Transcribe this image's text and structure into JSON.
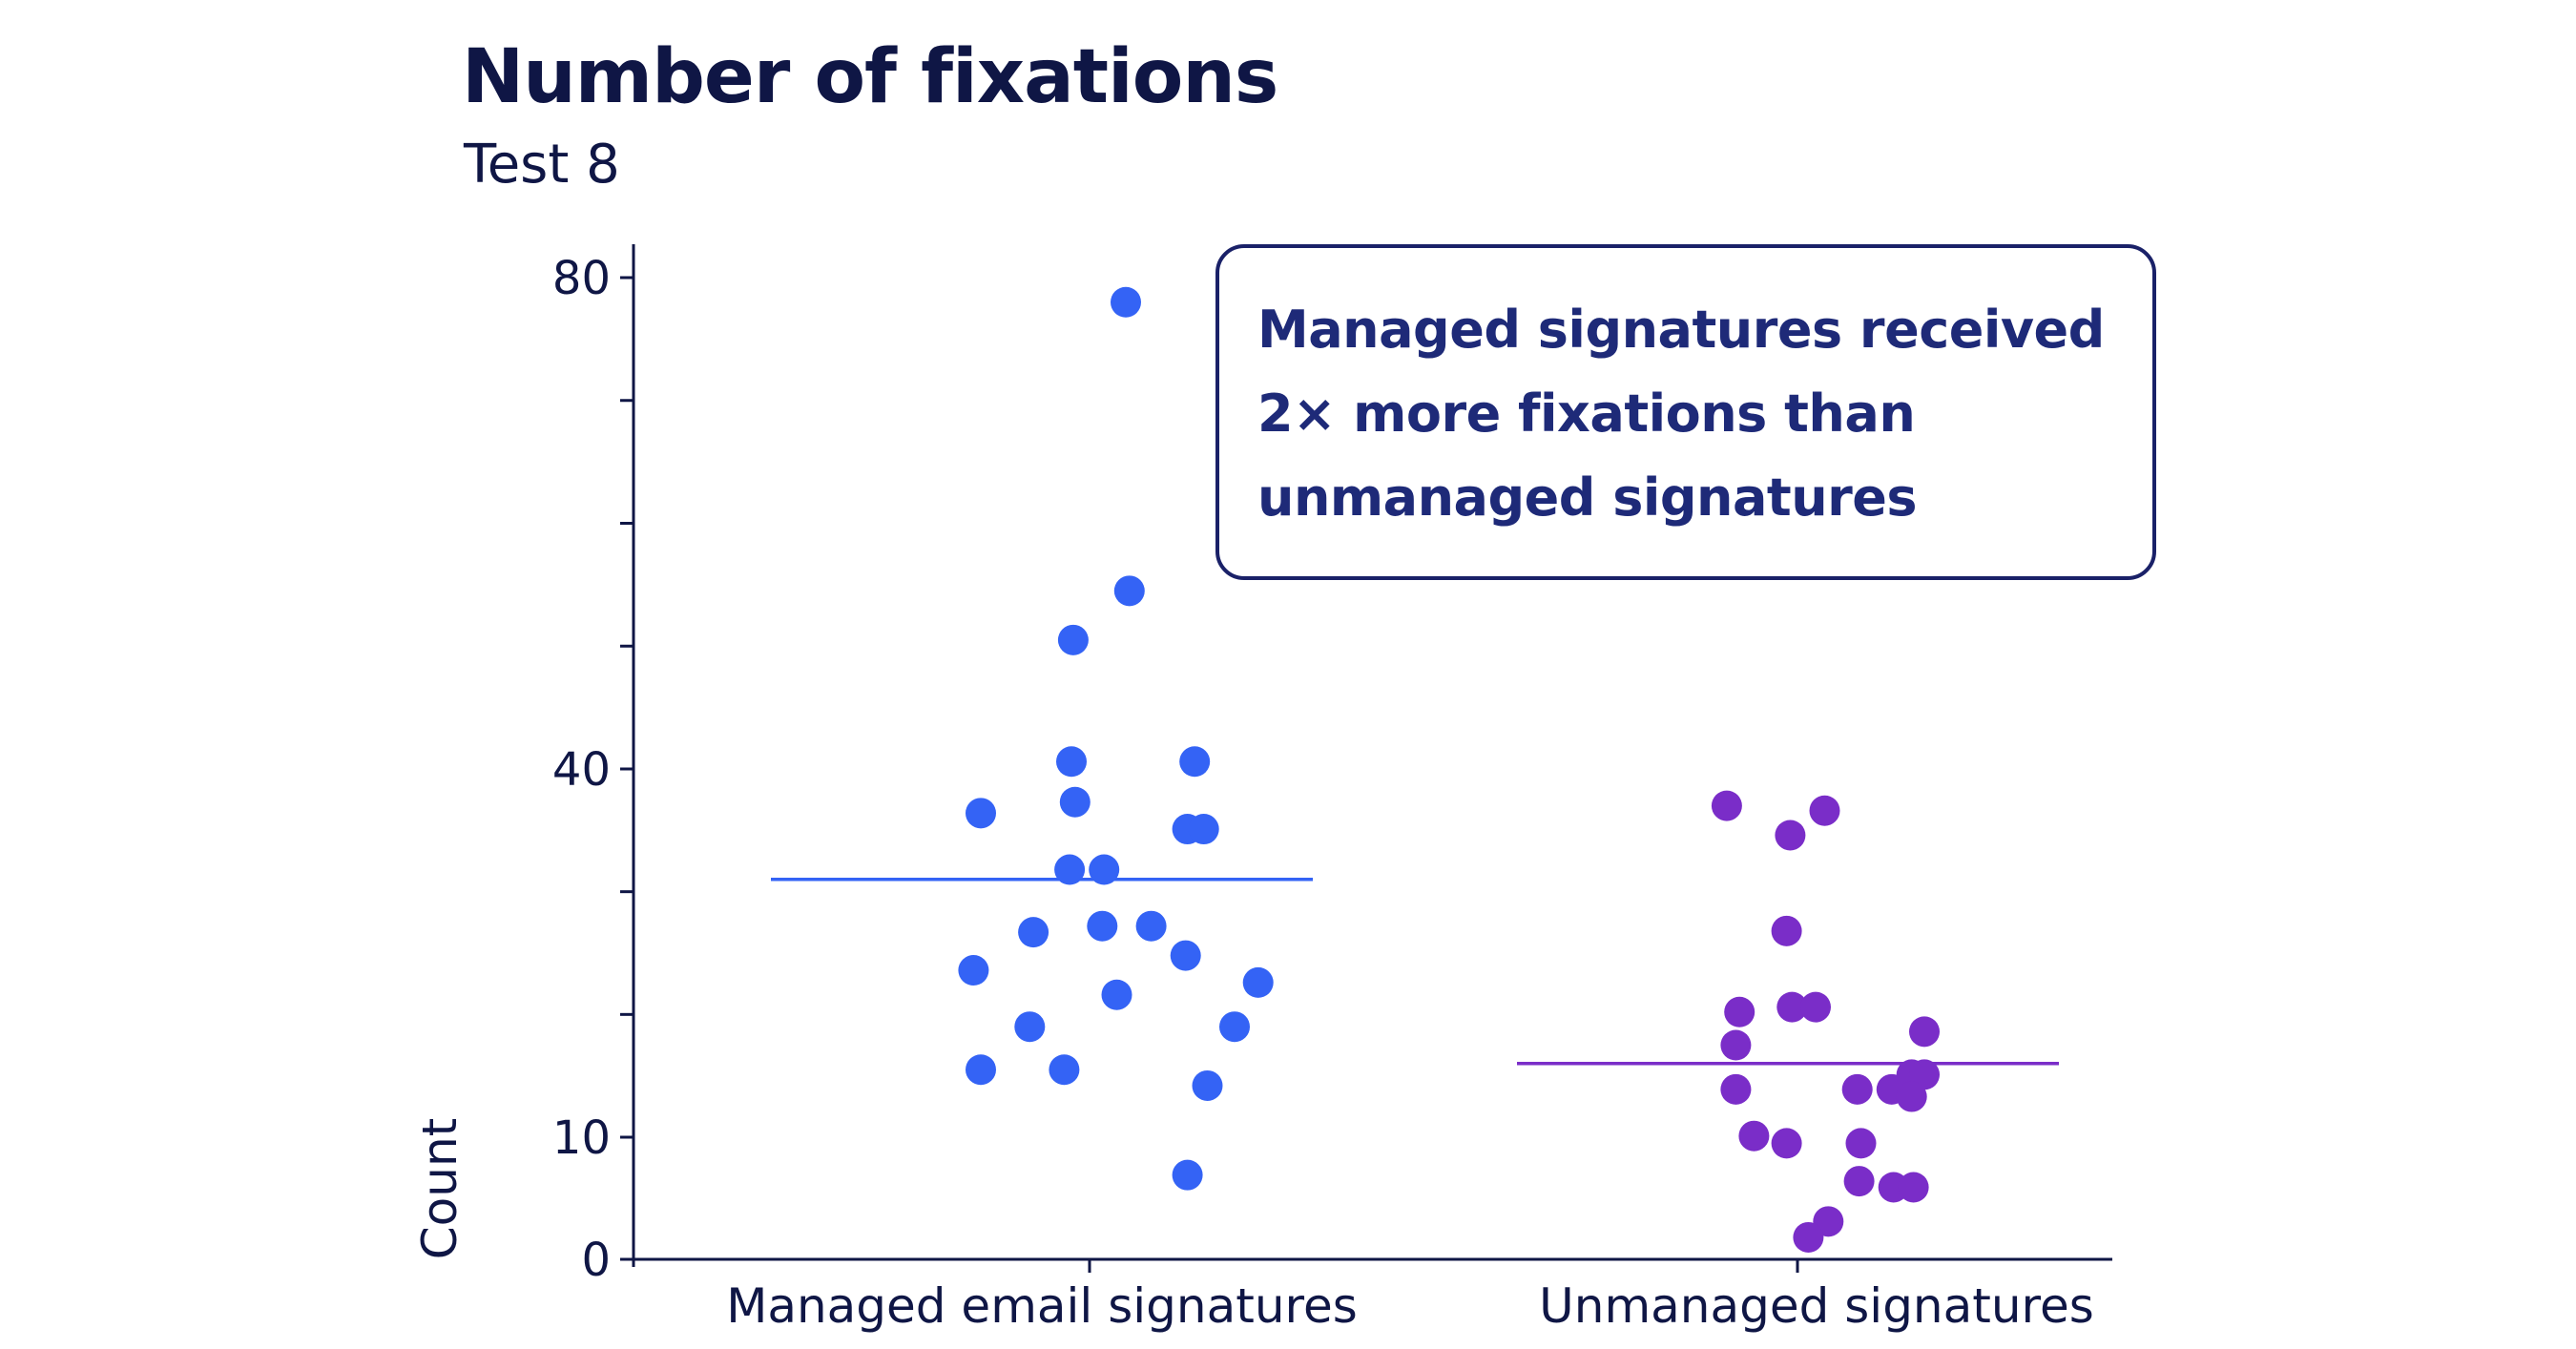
{
  "chart_data": {
    "type": "scatter",
    "title": "Number of fixations",
    "subtitle": "Test 8",
    "xlabel": "",
    "ylabel": "Count",
    "ylim": [
      0,
      80
    ],
    "y_scale": "piecewise",
    "y_ticks": [
      0,
      10,
      20,
      30,
      40,
      50,
      60,
      70,
      80
    ],
    "y_tick_labels": [
      "0",
      "10",
      "",
      "",
      "40",
      "",
      "",
      "",
      "80"
    ],
    "grid": false,
    "legend": "none",
    "categories": [
      "Managed email signatures",
      "Unmanaged signatures"
    ],
    "series": [
      {
        "color": "#3463f5",
        "mean": 31,
        "points": [
          {
            "j": 0.2,
            "y": 78
          },
          {
            "j": 0.22,
            "y": 54.5
          },
          {
            "j": -0.09,
            "y": 50.5
          },
          {
            "j": -0.1,
            "y": 40.6
          },
          {
            "j": 0.58,
            "y": 40.6
          },
          {
            "j": -0.6,
            "y": 36.4
          },
          {
            "j": -0.08,
            "y": 37.3
          },
          {
            "j": 0.54,
            "y": 35.1
          },
          {
            "j": 0.63,
            "y": 35.1
          },
          {
            "j": -0.11,
            "y": 31.8
          },
          {
            "j": 0.08,
            "y": 31.8
          },
          {
            "j": 0.07,
            "y": 27.2
          },
          {
            "j": 0.34,
            "y": 27.2
          },
          {
            "j": -0.31,
            "y": 26.7
          },
          {
            "j": 0.53,
            "y": 24.8
          },
          {
            "j": -0.64,
            "y": 23.6
          },
          {
            "j": 0.93,
            "y": 22.6
          },
          {
            "j": 0.15,
            "y": 21.6
          },
          {
            "j": -0.33,
            "y": 19.0
          },
          {
            "j": 0.8,
            "y": 19.0
          },
          {
            "j": -0.6,
            "y": 15.5
          },
          {
            "j": -0.14,
            "y": 15.5
          },
          {
            "j": 0.65,
            "y": 14.2
          },
          {
            "j": 0.54,
            "y": 6.9
          }
        ]
      },
      {
        "color": "#7a2dc8",
        "mean": 16,
        "points": [
          {
            "j": -0.39,
            "y": 37.0
          },
          {
            "j": -0.04,
            "y": 34.6
          },
          {
            "j": 0.15,
            "y": 36.6
          },
          {
            "j": -0.06,
            "y": 26.8
          },
          {
            "j": -0.32,
            "y": 20.2
          },
          {
            "j": -0.03,
            "y": 20.6
          },
          {
            "j": 0.1,
            "y": 20.6
          },
          {
            "j": 0.7,
            "y": 18.6
          },
          {
            "j": -0.34,
            "y": 17.5
          },
          {
            "j": 0.63,
            "y": 15.1
          },
          {
            "j": 0.7,
            "y": 15.1
          },
          {
            "j": -0.34,
            "y": 13.9
          },
          {
            "j": 0.33,
            "y": 13.9
          },
          {
            "j": 0.52,
            "y": 13.9
          },
          {
            "j": 0.63,
            "y": 13.3
          },
          {
            "j": -0.24,
            "y": 10.1
          },
          {
            "j": -0.06,
            "y": 9.5
          },
          {
            "j": 0.35,
            "y": 9.5
          },
          {
            "j": 0.34,
            "y": 6.4
          },
          {
            "j": 0.53,
            "y": 5.9
          },
          {
            "j": 0.64,
            "y": 5.9
          },
          {
            "j": 0.17,
            "y": 3.1
          },
          {
            "j": 0.06,
            "y": 1.8
          }
        ]
      }
    ]
  },
  "annotation": {
    "lines": [
      "Managed signatures received",
      "2× more fixations than",
      "unmanaged signatures"
    ]
  }
}
